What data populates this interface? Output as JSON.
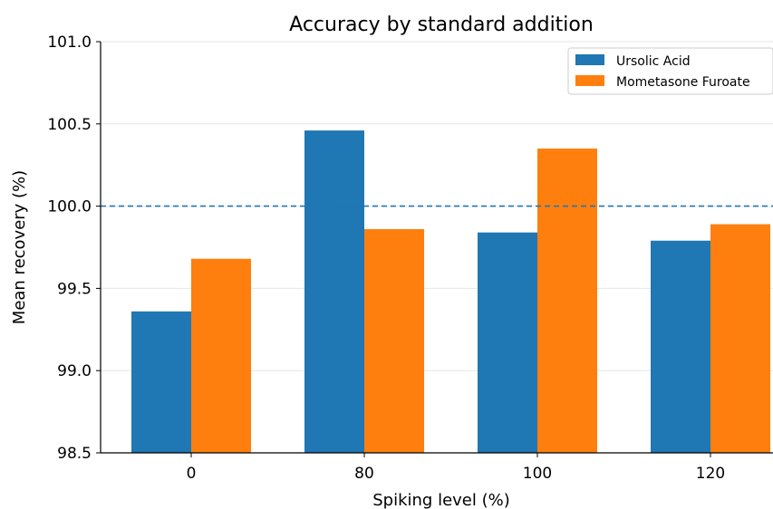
{
  "chart_data": {
    "type": "bar",
    "title": "Accuracy by standard addition",
    "xlabel": "Spiking level (%)",
    "ylabel": "Mean recovery (%)",
    "categories": [
      "0",
      "80",
      "100",
      "120"
    ],
    "ylim": [
      98.5,
      101.0
    ],
    "yticks": [
      "98.5",
      "99.0",
      "99.5",
      "100.0",
      "100.5",
      "101.0"
    ],
    "reference_line": 100.0,
    "grid": "horizontal",
    "legend_position": "top-right",
    "series": [
      {
        "name": "Ursolic Acid",
        "color": "#1f77b4",
        "values": [
          99.36,
          100.46,
          99.84,
          99.79
        ]
      },
      {
        "name": "Mometasone Furoate",
        "color": "#ff7f0e",
        "values": [
          99.68,
          99.86,
          100.35,
          99.89
        ]
      }
    ],
    "reference_line_color": "#1f77b4"
  }
}
